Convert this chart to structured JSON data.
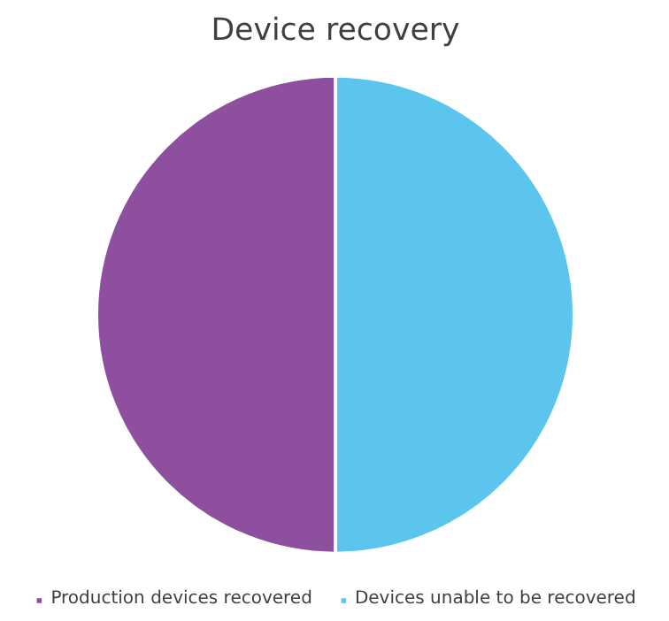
{
  "chart_data": {
    "type": "pie",
    "title": "Device recovery",
    "categories": [
      "Production devices recovered",
      "Devices unable to be recovered"
    ],
    "values": [
      50,
      50
    ],
    "colors": [
      "#8e4f9e",
      "#5bc5ee"
    ],
    "legend": "bottom"
  }
}
